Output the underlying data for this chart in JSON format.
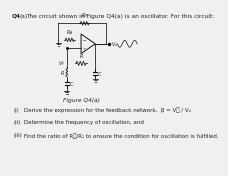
{
  "title_q": "Q4",
  "title_a": "(a)",
  "title_rest": "The circuit shown in Figure Q4(a) is an oscillator. For this circuit:",
  "figure_label": "Figure Q4(a)",
  "items": [
    [
      "(i)",
      "Derive the expression for the feedback network,  β = V₟ / Vₒ"
    ],
    [
      "(ii)",
      "Determine the frequency of oscillation, and"
    ],
    [
      "(iii)",
      "Find the ratio of R₟/R₁ to ensure the condition for oscillation is fulfilled."
    ]
  ],
  "bg_color": "#f0f0f0",
  "text_color": "#222222",
  "circuit_color": "#111111",
  "font_size_title": 4.2,
  "font_size_items": 4.0,
  "font_size_label": 4.2,
  "font_size_circuit": 3.5
}
